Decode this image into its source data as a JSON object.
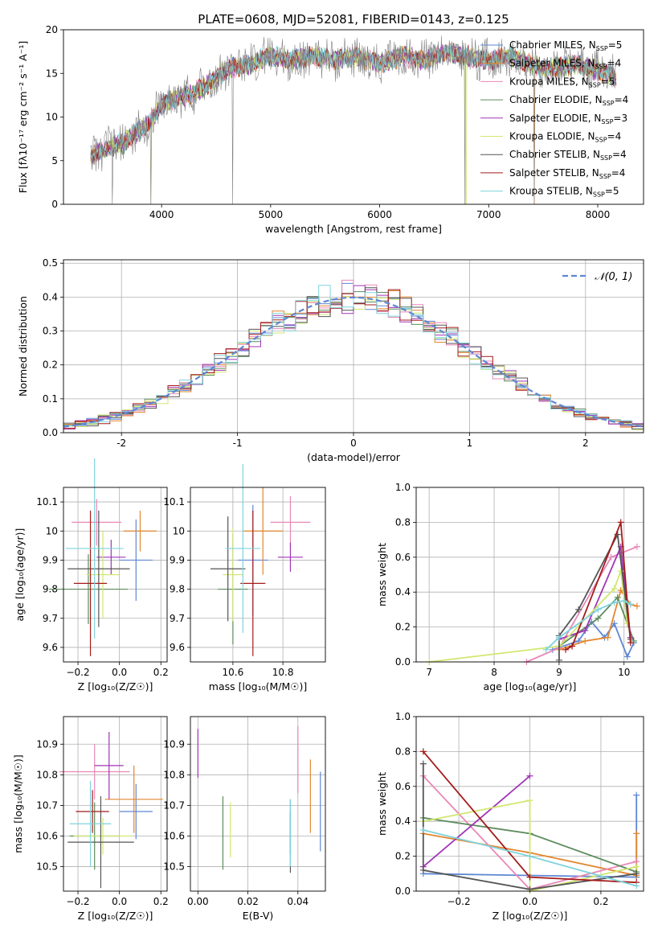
{
  "palette": [
    "#5e87d4",
    "#e3862f",
    "#e987b8",
    "#5d8c5d",
    "#a036b6",
    "#d1e771",
    "#555555",
    "#a51b1b",
    "#7fd3dc"
  ],
  "chart_data": [
    {
      "id": "spectrum",
      "type": "line",
      "title": "PLATE=0608, MJD=52081, FIBERID=0143, z=0.125",
      "xlabel": "wavelength [Angstrom, rest frame]",
      "ylabel": "Flux [fλ10⁻¹⁷ erg cm⁻² s⁻¹ A⁻¹]",
      "xlim": [
        3100,
        8420
      ],
      "ylim": [
        0,
        20
      ],
      "xticks": [
        4000,
        5000,
        6000,
        7000,
        8000
      ],
      "yticks": [
        0,
        5,
        10,
        15,
        20
      ],
      "grid": false,
      "legend_position": "right",
      "series": [
        {
          "name": "Chabrier MILES, N_SSP=5"
        },
        {
          "name": "Salpeter MILES, N_SSP=4"
        },
        {
          "name": "Kroupa MILES, N_SSP=5"
        },
        {
          "name": "Chabrier ELODIE, N_SSP=4"
        },
        {
          "name": "Salpeter ELODIE, N_SSP=3"
        },
        {
          "name": "Kroupa ELODIE, N_SSP=4"
        },
        {
          "name": "Chabrier STELIB, N_SSP=4"
        },
        {
          "name": "Salpeter STELIB, N_SSP=4"
        },
        {
          "name": "Kroupa STELIB, N_SSP=5"
        }
      ],
      "model_curve": {
        "x": [
          3350,
          3500,
          3650,
          3800,
          3900,
          4000,
          4100,
          4250,
          4400,
          4600,
          4800,
          5000,
          5200,
          5400,
          5600,
          5800,
          6000,
          6200,
          6400,
          6600,
          6800,
          7000,
          7200,
          7500,
          7800,
          8100,
          8170
        ],
        "y": [
          5.5,
          6.5,
          7.0,
          8.5,
          9.5,
          11.5,
          12.0,
          12.5,
          13.5,
          15.5,
          16.0,
          17.0,
          16.5,
          17.0,
          16.5,
          17.0,
          16.0,
          17.0,
          16.5,
          17.5,
          17.0,
          16.5,
          17.0,
          15.5,
          16.0,
          15.0,
          14.5
        ]
      },
      "dips": [
        {
          "x": 3550,
          "y": 0
        },
        {
          "x": 3900,
          "y": 0
        },
        {
          "x": 4650,
          "y": 0
        },
        {
          "x": 6780,
          "y": 0
        },
        {
          "x": 7420,
          "y": 0
        }
      ]
    },
    {
      "id": "residuals",
      "type": "histogram",
      "xlabel": "(data-model)/error",
      "ylabel": "Normed distribution",
      "xlim": [
        -2.5,
        2.5
      ],
      "ylim": [
        0,
        0.51
      ],
      "xticks": [
        -2,
        -1,
        0,
        1,
        2
      ],
      "yticks": [
        0.0,
        0.1,
        0.2,
        0.3,
        0.4,
        0.5
      ],
      "ytick_labels": [
        "0.0",
        "0.1",
        "0.2",
        "0.3",
        "0.4",
        "0.5"
      ],
      "grid": true,
      "legend_position": "top-right",
      "legend": "𝒩(0, 1)",
      "bin_width": 0.1
    },
    {
      "id": "age_vs_Z",
      "type": "scatter",
      "xlabel": "Z [log₁₀(Z/Z☉)]",
      "ylabel": "age  [log₁₀(age/yr)]",
      "xlim": [
        -0.27,
        0.23
      ],
      "ylim": [
        9.55,
        10.15
      ],
      "xticks": [
        -0.2,
        0.0,
        0.2
      ],
      "xtick_labels": [
        "−0.2",
        "0.0",
        "0.2"
      ],
      "yticks": [
        9.6,
        9.7,
        9.8,
        9.9,
        10.0,
        10.1
      ],
      "grid": true,
      "points": [
        {
          "x": 0.08,
          "xerr": 0.08,
          "y": 9.9,
          "yerr": 0.14
        },
        {
          "x": 0.1,
          "xerr": 0.08,
          "y": 10.0,
          "yerr": 0.07
        },
        {
          "x": -0.11,
          "xerr": 0.12,
          "y": 10.03,
          "yerr": 0.08
        },
        {
          "x": -0.15,
          "xerr": 0.19,
          "y": 9.8,
          "yerr": 0.12
        },
        {
          "x": -0.04,
          "xerr": 0.07,
          "y": 9.91,
          "yerr": 0.06
        },
        {
          "x": -0.08,
          "xerr": 0.08,
          "y": 9.85,
          "yerr": 0.15
        },
        {
          "x": -0.1,
          "xerr": 0.15,
          "y": 9.87,
          "yerr": 0.2
        },
        {
          "x": -0.14,
          "xerr": 0.08,
          "y": 9.82,
          "yerr": 0.25
        },
        {
          "x": -0.12,
          "xerr": 0.14,
          "y": 9.94,
          "yerr": 0.31
        }
      ]
    },
    {
      "id": "age_vs_mass",
      "type": "scatter",
      "xlabel": "mass [log₁₀(M/M☉)]",
      "ylabel": "",
      "xlim": [
        10.43,
        10.97
      ],
      "ylim": [
        9.55,
        10.15
      ],
      "xticks": [
        10.6,
        10.8
      ],
      "yticks": [
        9.6,
        9.7,
        9.8,
        9.9,
        10.0,
        10.1
      ],
      "grid": true,
      "points": [
        {
          "x": 10.68,
          "xerr": 0.06,
          "y": 9.9,
          "yerr": 0.19
        },
        {
          "x": 10.72,
          "xerr": 0.08,
          "y": 10.0,
          "yerr": 0.15
        },
        {
          "x": 10.83,
          "xerr": 0.08,
          "y": 10.03,
          "yerr": 0.09
        },
        {
          "x": 10.6,
          "xerr": 0.06,
          "y": 9.8,
          "yerr": 0.19
        },
        {
          "x": 10.83,
          "xerr": 0.05,
          "y": 9.91,
          "yerr": 0.05
        },
        {
          "x": 10.6,
          "xerr": 0.04,
          "y": 9.85,
          "yerr": 0.16
        },
        {
          "x": 10.58,
          "xerr": 0.07,
          "y": 9.87,
          "yerr": 0.18
        },
        {
          "x": 10.68,
          "xerr": 0.05,
          "y": 9.82,
          "yerr": 0.25
        },
        {
          "x": 10.64,
          "xerr": 0.07,
          "y": 9.94,
          "yerr": 0.29
        }
      ]
    },
    {
      "id": "mass_weight_vs_age",
      "type": "line",
      "xlabel": "age  [log₁₀(age/yr)]",
      "ylabel": "mass weight",
      "xlim": [
        6.8,
        10.3
      ],
      "ylim": [
        0,
        1
      ],
      "xticks": [
        7,
        8,
        9,
        10
      ],
      "yticks": [
        0.0,
        0.2,
        0.4,
        0.6,
        0.8,
        1.0
      ],
      "ytick_labels": [
        "0.0",
        "0.2",
        "0.4",
        "0.6",
        "0.8",
        "1.0"
      ],
      "grid": true,
      "series": [
        {
          "points": [
            [
              8.9,
              0.07
            ],
            [
              9.3,
              0.12
            ],
            [
              9.5,
              0.23
            ],
            [
              9.7,
              0.14
            ],
            [
              9.85,
              0.22
            ],
            [
              10.05,
              0.03
            ],
            [
              10.15,
              0.11
            ]
          ]
        },
        {
          "points": [
            [
              9.0,
              0.07
            ],
            [
              9.4,
              0.12
            ],
            [
              9.75,
              0.14
            ],
            [
              9.95,
              0.41
            ],
            [
              10.1,
              0.33
            ],
            [
              10.2,
              0.32
            ]
          ]
        },
        {
          "points": [
            [
              8.5,
              0.0
            ],
            [
              9.0,
              0.08
            ],
            [
              9.8,
              0.6
            ],
            [
              10.2,
              0.66
            ]
          ]
        },
        {
          "points": [
            [
              9.0,
              0.09
            ],
            [
              9.6,
              0.25
            ],
            [
              9.9,
              0.37
            ],
            [
              10.15,
              0.12
            ]
          ]
        },
        {
          "points": [
            [
              9.0,
              0.13
            ],
            [
              9.4,
              0.18
            ],
            [
              9.95,
              0.66
            ],
            [
              10.1,
              0.14
            ]
          ]
        },
        {
          "points": [
            [
              7.0,
              0.0
            ],
            [
              9.0,
              0.09
            ],
            [
              9.85,
              0.42
            ],
            [
              9.95,
              0.52
            ],
            [
              10.05,
              0.22
            ]
          ]
        },
        {
          "points": [
            [
              9.0,
              0.01
            ],
            [
              9.0,
              0.15
            ],
            [
              9.3,
              0.3
            ],
            [
              9.9,
              0.73
            ],
            [
              10.1,
              0.13
            ]
          ]
        },
        {
          "points": [
            [
              9.1,
              0.07
            ],
            [
              9.2,
              0.09
            ],
            [
              9.95,
              0.8
            ],
            [
              10.1,
              0.11
            ]
          ]
        },
        {
          "points": [
            [
              8.8,
              0.07
            ],
            [
              9.0,
              0.14
            ],
            [
              9.6,
              0.3
            ],
            [
              9.85,
              0.34
            ],
            [
              10.0,
              0.35
            ],
            [
              10.1,
              0.33
            ]
          ]
        }
      ]
    },
    {
      "id": "mass_vs_Z",
      "type": "scatter",
      "xlabel": "Z [log₁₀(Z/Z☉)]",
      "ylabel": "mass [log₁₀(M/M☉)]",
      "xlim": [
        -0.27,
        0.23
      ],
      "ylim": [
        10.42,
        10.99
      ],
      "xticks": [
        -0.2,
        0.0,
        0.2
      ],
      "xtick_labels": [
        "−0.2",
        "0.0",
        "0.2"
      ],
      "yticks": [
        10.5,
        10.6,
        10.7,
        10.8,
        10.9
      ],
      "grid": true,
      "points": [
        {
          "x": 0.08,
          "xerr": 0.08,
          "y": 10.68,
          "yerr": 0.09
        },
        {
          "x": 0.07,
          "xerr": 0.14,
          "y": 10.72,
          "yerr": 0.11
        },
        {
          "x": -0.12,
          "xerr": 0.17,
          "y": 10.81,
          "yerr": 0.09
        },
        {
          "x": -0.12,
          "xerr": 0.12,
          "y": 10.6,
          "yerr": 0.11
        },
        {
          "x": -0.05,
          "xerr": 0.07,
          "y": 10.83,
          "yerr": 0.11
        },
        {
          "x": -0.08,
          "xerr": 0.14,
          "y": 10.6,
          "yerr": 0.06
        },
        {
          "x": -0.09,
          "xerr": 0.16,
          "y": 10.58,
          "yerr": 0.15
        },
        {
          "x": -0.13,
          "xerr": 0.08,
          "y": 10.68,
          "yerr": 0.07
        },
        {
          "x": -0.14,
          "xerr": 0.1,
          "y": 10.64,
          "yerr": 0.14
        }
      ]
    },
    {
      "id": "mass_vs_ebv",
      "type": "scatter",
      "xlabel": "E(B-V)",
      "ylabel": "",
      "xlim": [
        -0.003,
        0.051
      ],
      "ylim": [
        10.42,
        10.99
      ],
      "xticks": [
        0.0,
        0.02,
        0.04
      ],
      "xtick_labels": [
        "0.00",
        "0.02",
        "0.04"
      ],
      "yticks": [
        10.5,
        10.6,
        10.7,
        10.8,
        10.9
      ],
      "grid": true,
      "points": [
        {
          "x": 0.049,
          "y": 10.68,
          "yerr": 0.13
        },
        {
          "x": 0.045,
          "y": 10.73,
          "yerr": 0.12
        },
        {
          "x": 0.04,
          "y": 10.85,
          "yerr": 0.11
        },
        {
          "x": 0.01,
          "y": 10.61,
          "yerr": 0.12
        },
        {
          "x": 0.0,
          "y": 10.87,
          "yerr": 0.08
        },
        {
          "x": 0.013,
          "y": 10.62,
          "yerr": 0.09
        },
        {
          "x": 0.037,
          "y": 10.58,
          "yerr": 0.1
        },
        {
          "x": 0.037,
          "y": 10.63,
          "yerr": 0.09
        },
        {
          "x": 0.037,
          "y": 10.61,
          "yerr": 0.11
        }
      ]
    },
    {
      "id": "mass_weight_vs_Z",
      "type": "line",
      "xlabel": "Z [log₁₀(Z/Z☉)]",
      "ylabel": "mass weight",
      "xlim": [
        -0.32,
        0.32
      ],
      "ylim": [
        0,
        1
      ],
      "xticks": [
        -0.2,
        0.0,
        0.2
      ],
      "xtick_labels": [
        "−0.2",
        "0.0",
        "0.2"
      ],
      "yticks": [
        0.0,
        0.2,
        0.4,
        0.6,
        0.8,
        1.0
      ],
      "ytick_labels": [
        "0.0",
        "0.2",
        "0.4",
        "0.6",
        "0.8",
        "1.0"
      ],
      "grid": true,
      "series": [
        {
          "points": [
            [
              -0.3,
              0.1
            ],
            [
              0.0,
              0.09
            ],
            [
              0.3,
              0.08
            ],
            [
              0.3,
              0.55
            ]
          ]
        },
        {
          "points": [
            [
              -0.3,
              0.33
            ],
            [
              0.0,
              0.22
            ],
            [
              0.3,
              0.09
            ],
            [
              0.3,
              0.33
            ]
          ]
        },
        {
          "points": [
            [
              -0.3,
              0.66
            ],
            [
              0.0,
              0.01
            ],
            [
              0.3,
              0.17
            ]
          ]
        },
        {
          "points": [
            [
              -0.3,
              0.42
            ],
            [
              0.0,
              0.33
            ],
            [
              0.3,
              0.11
            ]
          ]
        },
        {
          "points": [
            [
              -0.3,
              0.14
            ],
            [
              0.0,
              0.66
            ]
          ]
        },
        {
          "points": [
            [
              -0.3,
              0.4
            ],
            [
              0.0,
              0.52
            ],
            [
              0.0,
              0.0
            ],
            [
              0.3,
              0.14
            ]
          ]
        },
        {
          "points": [
            [
              -0.3,
              0.73
            ],
            [
              -0.3,
              0.12
            ],
            [
              0.0,
              0.01
            ],
            [
              0.3,
              0.1
            ]
          ]
        },
        {
          "points": [
            [
              -0.3,
              0.8
            ],
            [
              0.0,
              0.08
            ],
            [
              0.3,
              0.05
            ]
          ]
        },
        {
          "points": [
            [
              -0.3,
              0.35
            ],
            [
              0.0,
              0.2
            ],
            [
              0.3,
              0.03
            ]
          ]
        }
      ]
    }
  ]
}
